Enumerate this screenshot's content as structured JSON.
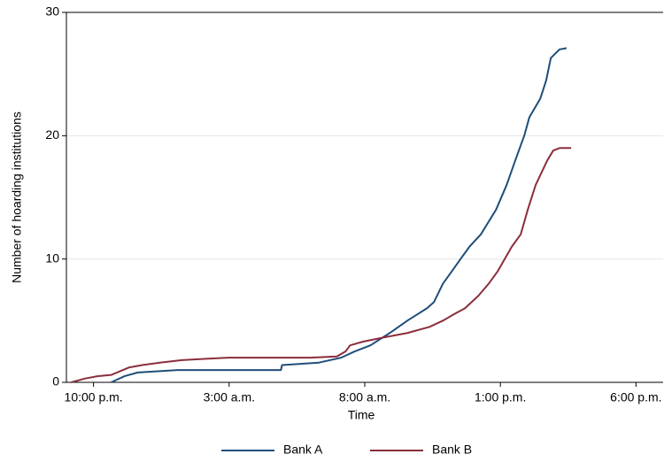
{
  "chart_data": {
    "type": "line",
    "x_label": "Time",
    "y_label": "Number of hoarding institutions",
    "xlim": [
      -1,
      21
    ],
    "xticks": [
      {
        "value": 0,
        "label": "10:00 p.m."
      },
      {
        "value": 5,
        "label": "3:00 a.m."
      },
      {
        "value": 10,
        "label": "8:00 a.m."
      },
      {
        "value": 15,
        "label": "1:00 p.m."
      },
      {
        "value": 20,
        "label": "6:00 p.m."
      }
    ],
    "ylim": [
      0,
      30
    ],
    "yticks": [
      0,
      10,
      20,
      30
    ],
    "grid": true,
    "legend": "bottom",
    "series": [
      {
        "name": "Bank A",
        "color": "#1f4e79",
        "x": [
          0.65,
          1.14,
          1.63,
          3.1,
          6.91,
          6.95,
          8.31,
          9.13,
          9.62,
          10.21,
          10.92,
          11.57,
          12.29,
          12.55,
          12.88,
          13.21,
          13.53,
          13.86,
          14.28,
          14.84,
          15.23,
          15.55,
          15.88,
          16.07,
          16.47,
          16.69,
          16.86,
          17.18,
          17.44
        ],
        "values": [
          0,
          0.5,
          0.8,
          1,
          1,
          1.4,
          1.6,
          2,
          2.5,
          3,
          4,
          5,
          6,
          6.5,
          8,
          9,
          10,
          11,
          12,
          14,
          16,
          18,
          20,
          21.5,
          23,
          24.5,
          26.3,
          27,
          27.1
        ]
      },
      {
        "name": "Bank B",
        "color": "#8b2e3c",
        "x": [
          -0.82,
          -0.33,
          0.16,
          0.65,
          0.98,
          1.3,
          1.79,
          2.45,
          3.26,
          4.08,
          4.99,
          6.36,
          7.99,
          8.97,
          9.29,
          9.46,
          9.94,
          10.6,
          11.57,
          12.39,
          12.88,
          13.27,
          13.69,
          14.18,
          14.57,
          14.9,
          15.16,
          15.42,
          15.75,
          16.01,
          16.3,
          16.73,
          16.95,
          17.18,
          17.61
        ],
        "values": [
          0,
          0.3,
          0.5,
          0.6,
          0.9,
          1.2,
          1.4,
          1.6,
          1.8,
          1.9,
          2,
          2,
          2,
          2.1,
          2.5,
          3,
          3.3,
          3.6,
          4,
          4.5,
          5,
          5.5,
          6,
          7,
          8,
          9,
          10,
          11,
          12,
          14,
          16,
          18,
          18.8,
          19,
          19
        ]
      }
    ]
  }
}
